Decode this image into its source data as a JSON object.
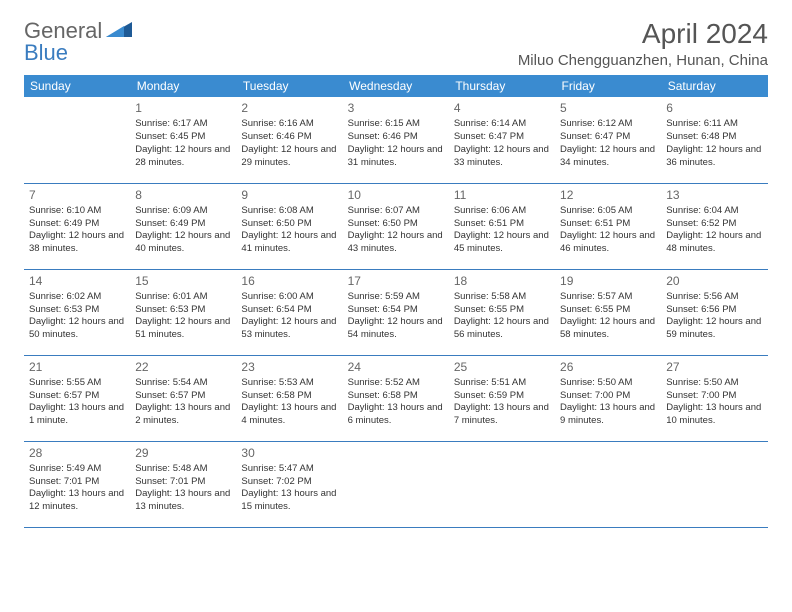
{
  "brand": {
    "part1": "General",
    "part2": "Blue"
  },
  "title": "April 2024",
  "location": "Miluo Chengguanzhen, Hunan, China",
  "colors": {
    "header_bg": "#3a8bd0",
    "line": "#3a7cbf",
    "text": "#333333",
    "muted": "#666666"
  },
  "weekdays": [
    "Sunday",
    "Monday",
    "Tuesday",
    "Wednesday",
    "Thursday",
    "Friday",
    "Saturday"
  ],
  "days": {
    "1": {
      "sunrise": "Sunrise: 6:17 AM",
      "sunset": "Sunset: 6:45 PM",
      "daylight": "Daylight: 12 hours and 28 minutes."
    },
    "2": {
      "sunrise": "Sunrise: 6:16 AM",
      "sunset": "Sunset: 6:46 PM",
      "daylight": "Daylight: 12 hours and 29 minutes."
    },
    "3": {
      "sunrise": "Sunrise: 6:15 AM",
      "sunset": "Sunset: 6:46 PM",
      "daylight": "Daylight: 12 hours and 31 minutes."
    },
    "4": {
      "sunrise": "Sunrise: 6:14 AM",
      "sunset": "Sunset: 6:47 PM",
      "daylight": "Daylight: 12 hours and 33 minutes."
    },
    "5": {
      "sunrise": "Sunrise: 6:12 AM",
      "sunset": "Sunset: 6:47 PM",
      "daylight": "Daylight: 12 hours and 34 minutes."
    },
    "6": {
      "sunrise": "Sunrise: 6:11 AM",
      "sunset": "Sunset: 6:48 PM",
      "daylight": "Daylight: 12 hours and 36 minutes."
    },
    "7": {
      "sunrise": "Sunrise: 6:10 AM",
      "sunset": "Sunset: 6:49 PM",
      "daylight": "Daylight: 12 hours and 38 minutes."
    },
    "8": {
      "sunrise": "Sunrise: 6:09 AM",
      "sunset": "Sunset: 6:49 PM",
      "daylight": "Daylight: 12 hours and 40 minutes."
    },
    "9": {
      "sunrise": "Sunrise: 6:08 AM",
      "sunset": "Sunset: 6:50 PM",
      "daylight": "Daylight: 12 hours and 41 minutes."
    },
    "10": {
      "sunrise": "Sunrise: 6:07 AM",
      "sunset": "Sunset: 6:50 PM",
      "daylight": "Daylight: 12 hours and 43 minutes."
    },
    "11": {
      "sunrise": "Sunrise: 6:06 AM",
      "sunset": "Sunset: 6:51 PM",
      "daylight": "Daylight: 12 hours and 45 minutes."
    },
    "12": {
      "sunrise": "Sunrise: 6:05 AM",
      "sunset": "Sunset: 6:51 PM",
      "daylight": "Daylight: 12 hours and 46 minutes."
    },
    "13": {
      "sunrise": "Sunrise: 6:04 AM",
      "sunset": "Sunset: 6:52 PM",
      "daylight": "Daylight: 12 hours and 48 minutes."
    },
    "14": {
      "sunrise": "Sunrise: 6:02 AM",
      "sunset": "Sunset: 6:53 PM",
      "daylight": "Daylight: 12 hours and 50 minutes."
    },
    "15": {
      "sunrise": "Sunrise: 6:01 AM",
      "sunset": "Sunset: 6:53 PM",
      "daylight": "Daylight: 12 hours and 51 minutes."
    },
    "16": {
      "sunrise": "Sunrise: 6:00 AM",
      "sunset": "Sunset: 6:54 PM",
      "daylight": "Daylight: 12 hours and 53 minutes."
    },
    "17": {
      "sunrise": "Sunrise: 5:59 AM",
      "sunset": "Sunset: 6:54 PM",
      "daylight": "Daylight: 12 hours and 54 minutes."
    },
    "18": {
      "sunrise": "Sunrise: 5:58 AM",
      "sunset": "Sunset: 6:55 PM",
      "daylight": "Daylight: 12 hours and 56 minutes."
    },
    "19": {
      "sunrise": "Sunrise: 5:57 AM",
      "sunset": "Sunset: 6:55 PM",
      "daylight": "Daylight: 12 hours and 58 minutes."
    },
    "20": {
      "sunrise": "Sunrise: 5:56 AM",
      "sunset": "Sunset: 6:56 PM",
      "daylight": "Daylight: 12 hours and 59 minutes."
    },
    "21": {
      "sunrise": "Sunrise: 5:55 AM",
      "sunset": "Sunset: 6:57 PM",
      "daylight": "Daylight: 13 hours and 1 minute."
    },
    "22": {
      "sunrise": "Sunrise: 5:54 AM",
      "sunset": "Sunset: 6:57 PM",
      "daylight": "Daylight: 13 hours and 2 minutes."
    },
    "23": {
      "sunrise": "Sunrise: 5:53 AM",
      "sunset": "Sunset: 6:58 PM",
      "daylight": "Daylight: 13 hours and 4 minutes."
    },
    "24": {
      "sunrise": "Sunrise: 5:52 AM",
      "sunset": "Sunset: 6:58 PM",
      "daylight": "Daylight: 13 hours and 6 minutes."
    },
    "25": {
      "sunrise": "Sunrise: 5:51 AM",
      "sunset": "Sunset: 6:59 PM",
      "daylight": "Daylight: 13 hours and 7 minutes."
    },
    "26": {
      "sunrise": "Sunrise: 5:50 AM",
      "sunset": "Sunset: 7:00 PM",
      "daylight": "Daylight: 13 hours and 9 minutes."
    },
    "27": {
      "sunrise": "Sunrise: 5:50 AM",
      "sunset": "Sunset: 7:00 PM",
      "daylight": "Daylight: 13 hours and 10 minutes."
    },
    "28": {
      "sunrise": "Sunrise: 5:49 AM",
      "sunset": "Sunset: 7:01 PM",
      "daylight": "Daylight: 13 hours and 12 minutes."
    },
    "29": {
      "sunrise": "Sunrise: 5:48 AM",
      "sunset": "Sunset: 7:01 PM",
      "daylight": "Daylight: 13 hours and 13 minutes."
    },
    "30": {
      "sunrise": "Sunrise: 5:47 AM",
      "sunset": "Sunset: 7:02 PM",
      "daylight": "Daylight: 13 hours and 15 minutes."
    }
  },
  "layout": {
    "first_weekday_offset": 1,
    "total_days": 30
  }
}
